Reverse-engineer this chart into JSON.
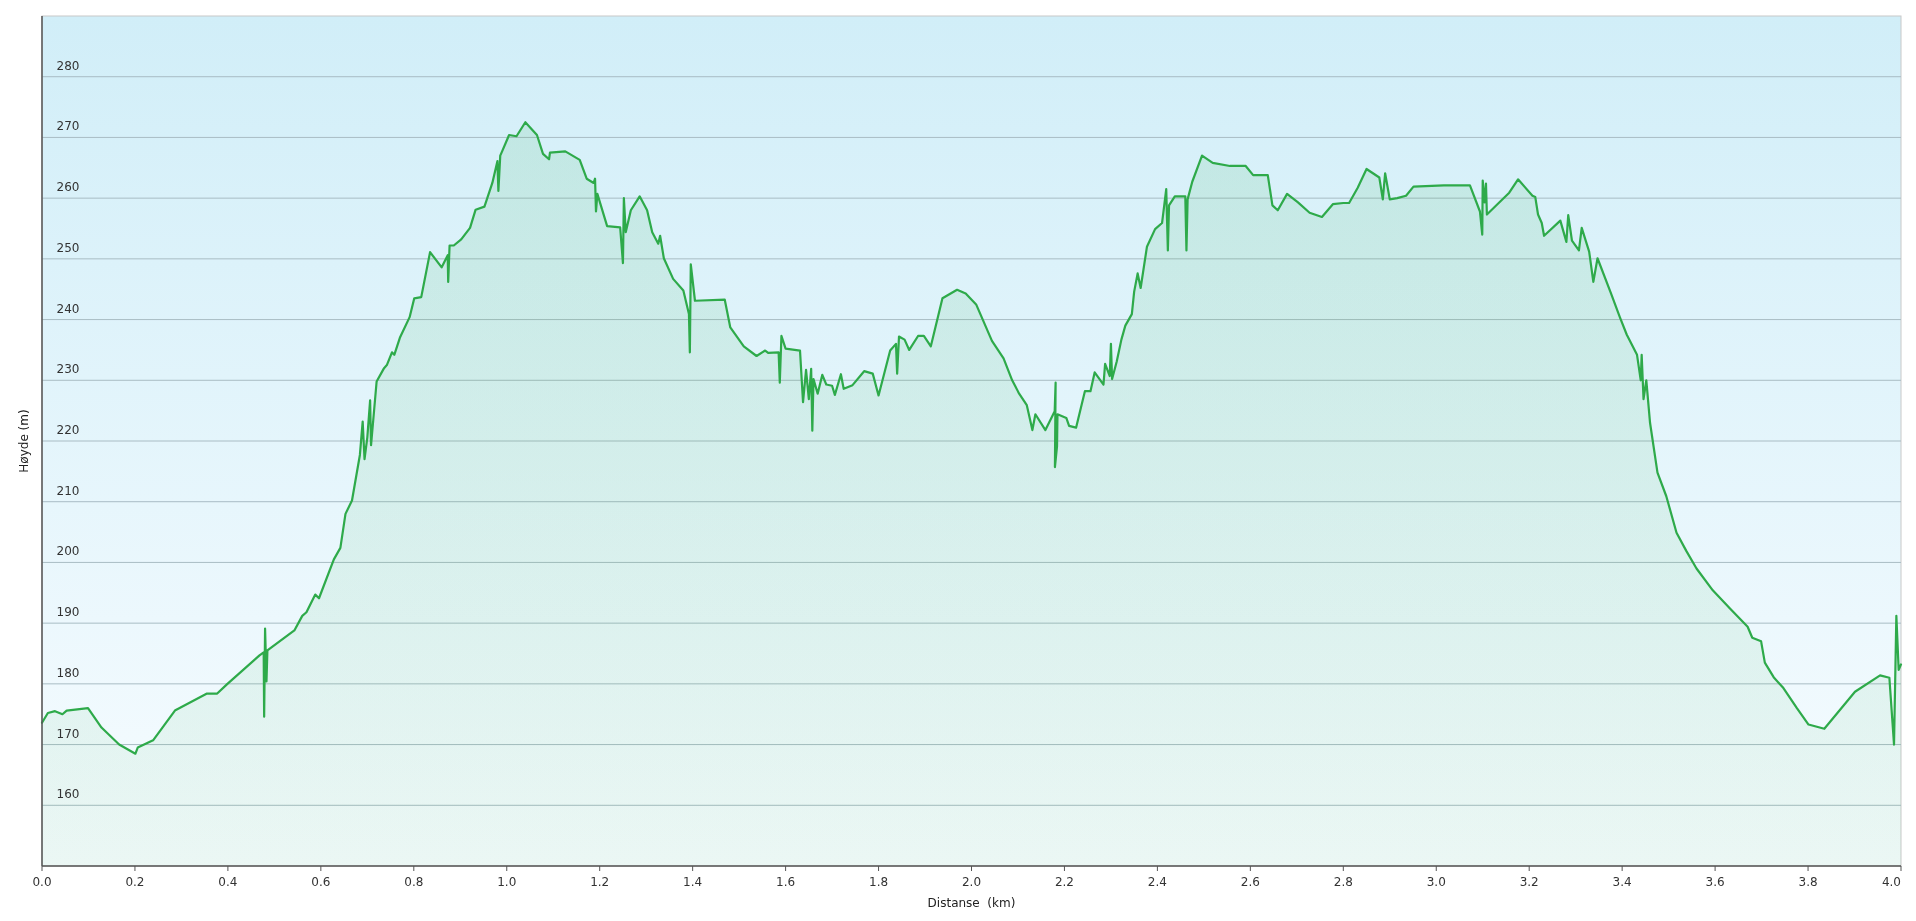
{
  "chart_data": {
    "type": "area",
    "xlabel": "Distanse  (km)",
    "ylabel": "Høyde (m)",
    "xlim": [
      0,
      4.0
    ],
    "ylim": [
      150,
      290
    ],
    "xticks": [
      {
        "value": 0,
        "label": "0.0"
      },
      0.2,
      0.4,
      0.6,
      0.8,
      {
        "value": 1,
        "label": "1.0"
      },
      1.2,
      1.4,
      1.6,
      1.8,
      {
        "value": 2,
        "label": "2.0"
      },
      2.2,
      2.4,
      2.6,
      2.8,
      {
        "value": 3,
        "label": "3.0"
      },
      3.2,
      3.4,
      3.6,
      3.8,
      {
        "value": 4,
        "label": "4.0"
      }
    ],
    "yticks": [
      160,
      170,
      180,
      190,
      200,
      210,
      220,
      230,
      240,
      250,
      260,
      270,
      280
    ],
    "grid": "y",
    "series": [
      {
        "color": "#2eaa4a",
        "x": [
          0,
          0.0126,
          0.028,
          0.044,
          0.053,
          0.099,
          0.128,
          0.166,
          0.201,
          0.206,
          0.239,
          0.286,
          0.355,
          0.377,
          0.399,
          0.468,
          0.477,
          0.478,
          0.48,
          0.483,
          0.485,
          0.543,
          0.56,
          0.569,
          0.588,
          0.596,
          0.628,
          0.642,
          0.653,
          0.667,
          0.684,
          0.69,
          0.694,
          0.7,
          0.706,
          0.708,
          0.72,
          0.736,
          0.742,
          0.753,
          0.758,
          0.77,
          0.791,
          0.801,
          0.816,
          0.835,
          0.86,
          0.873,
          0.874,
          0.877,
          0.886,
          0.902,
          0.921,
          0.933,
          0.952,
          0.969,
          0.98,
          0.982,
          0.986,
          0.99,
          1.005,
          1.021,
          1.04,
          1.065,
          1.078,
          1.091,
          1.093,
          1.126,
          1.157,
          1.172,
          1.187,
          1.19,
          1.192,
          1.195,
          1.216,
          1.244,
          1.25,
          1.252,
          1.256,
          1.267,
          1.286,
          1.302,
          1.313,
          1.326,
          1.33,
          1.338,
          1.358,
          1.38,
          1.392,
          1.394,
          1.396,
          1.405,
          1.469,
          1.481,
          1.51,
          1.5375,
          1.556,
          1.5625,
          1.585,
          1.5875,
          1.591,
          1.6,
          1.631,
          1.6375,
          1.644,
          1.65,
          1.655,
          1.6575,
          1.66,
          1.669,
          1.679,
          1.6875,
          1.7,
          1.706,
          1.719,
          1.725,
          1.744,
          1.769,
          1.7875,
          1.8,
          1.8125,
          1.825,
          1.8375,
          1.84,
          1.844,
          1.856,
          1.866,
          1.885,
          1.8975,
          1.9125,
          1.9375,
          1.969,
          1.9875,
          2.01,
          2.044,
          2.069,
          2.0875,
          2.1025,
          2.119,
          2.131,
          2.1375,
          2.159,
          2.179,
          2.181,
          2.1795,
          2.184,
          2.185,
          2.204,
          2.21,
          2.225,
          2.244,
          2.256,
          2.265,
          2.284,
          2.2875,
          2.2975,
          2.3,
          2.3025,
          2.3125,
          2.3225,
          2.331,
          2.345,
          2.35,
          2.3575,
          2.364,
          2.3775,
          2.395,
          2.41,
          2.419,
          2.4225,
          2.425,
          2.4375,
          2.46,
          2.4625,
          2.465,
          2.475,
          2.496,
          2.519,
          2.556,
          2.59,
          2.606,
          2.6375,
          2.6475,
          2.659,
          2.679,
          2.7025,
          2.7275,
          2.754,
          2.7775,
          2.8,
          2.8125,
          2.831,
          2.85,
          2.8775,
          2.885,
          2.89,
          2.9,
          2.916,
          2.935,
          2.951,
          3.0165,
          3.0725,
          3.094,
          3.099,
          3.1,
          3.104,
          3.107,
          3.109,
          3.157,
          3.176,
          3.207,
          3.213,
          3.219,
          3.227,
          3.232,
          3.267,
          3.28,
          3.284,
          3.292,
          3.307,
          3.313,
          3.329,
          3.338,
          3.347,
          3.376,
          3.395,
          3.41,
          3.432,
          3.44,
          3.442,
          3.446,
          3.452,
          3.46,
          3.476,
          3.495,
          3.517,
          3.538,
          3.56,
          3.595,
          3.632,
          3.67,
          3.68,
          3.699,
          3.707,
          3.726,
          3.747,
          3.776,
          3.801,
          3.835,
          3.901,
          3.955,
          3.975,
          3.985,
          3.99,
          3.995,
          4.0
        ],
        "values": [
          173.6,
          175.2,
          175.5,
          175,
          175.6,
          176,
          172.8,
          170,
          168.5,
          169.5,
          170.7,
          175.6,
          178.4,
          178.4,
          180,
          184.7,
          185.2,
          174.6,
          189.1,
          180.4,
          185.5,
          188.8,
          191.2,
          191.8,
          194.7,
          194.1,
          200.5,
          202.4,
          208,
          210.2,
          217.7,
          223.2,
          217,
          220.6,
          226.7,
          219.3,
          229.8,
          232,
          232.5,
          234.6,
          234.2,
          237,
          240.4,
          243.5,
          243.7,
          251.1,
          248.6,
          250.6,
          246.2,
          252.2,
          252.2,
          253.2,
          255.1,
          258.1,
          258.6,
          262.5,
          266.1,
          261.2,
          267,
          267.7,
          270.4,
          270.2,
          272.5,
          270.4,
          267.3,
          266.4,
          267.5,
          267.7,
          266.3,
          263.2,
          262.5,
          263.2,
          257.8,
          260.7,
          255.4,
          255.2,
          249.3,
          260,
          254.4,
          258,
          260.3,
          258,
          254.4,
          252.5,
          253.8,
          250.1,
          246.7,
          244.8,
          240.9,
          234.6,
          249.1,
          243.1,
          243.3,
          238.7,
          235.6,
          234,
          234.9,
          234.5,
          234.6,
          229.6,
          237.3,
          235.2,
          234.9,
          226.4,
          231.7,
          226.9,
          231.9,
          221.7,
          230.2,
          227.8,
          230.9,
          229.3,
          229.1,
          227.6,
          231,
          228.6,
          229.2,
          231.5,
          231.1,
          227.5,
          231.2,
          234.9,
          236,
          231.1,
          237.2,
          236.7,
          235,
          237.3,
          237.3,
          235.6,
          243.5,
          244.9,
          244.3,
          242.5,
          236.5,
          233.6,
          230,
          227.8,
          225.9,
          221.8,
          224.4,
          221.8,
          224.9,
          229.6,
          215.7,
          219.1,
          224.4,
          223.8,
          222.5,
          222.2,
          228.2,
          228.2,
          231.3,
          229.3,
          232.7,
          230.7,
          236,
          230.2,
          233.1,
          236.7,
          239,
          240.9,
          244.6,
          247.6,
          245.2,
          252,
          254.9,
          255.9,
          261.5,
          251.4,
          258.8,
          260.3,
          260.3,
          251.4,
          259.8,
          262.7,
          267,
          265.8,
          265.3,
          265.3,
          263.8,
          263.8,
          258.8,
          258,
          260.7,
          259.3,
          257.6,
          256.9,
          259,
          259.2,
          259.2,
          261.7,
          264.8,
          263.4,
          259.8,
          264.1,
          259.8,
          260,
          260.4,
          261.9,
          262.1,
          262.1,
          257.8,
          254,
          262.9,
          259.3,
          262.4,
          257.3,
          260.9,
          263.1,
          260.4,
          260.2,
          257.3,
          255.9,
          253.8,
          256.3,
          252.8,
          257.2,
          253,
          251.4,
          255.1,
          251.2,
          246.2,
          250.1,
          244.3,
          240.4,
          237.5,
          234.2,
          230,
          234.2,
          226.9,
          230,
          223,
          214.8,
          210.9,
          204.9,
          201.9,
          199,
          195.4,
          192.4,
          189.4,
          187.6,
          187,
          183.5,
          181.1,
          179.3,
          176,
          173.3,
          172.6,
          178.7,
          181.4,
          181,
          170,
          191.2,
          182.3,
          183.2
        ]
      }
    ]
  }
}
